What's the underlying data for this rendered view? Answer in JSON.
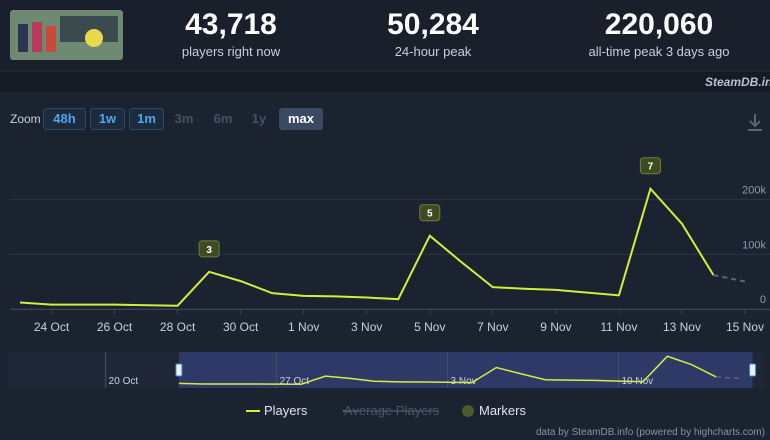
{
  "header": {
    "stats": [
      {
        "value": "43,718",
        "label": "players right now"
      },
      {
        "value": "50,284",
        "label": "24-hour peak"
      },
      {
        "value": "220,060",
        "label": "all-time peak 3 days ago"
      }
    ],
    "source": "SteamDB.info"
  },
  "zoom": {
    "label": "Zoom",
    "buttons": [
      {
        "label": "48h",
        "state": "enabled"
      },
      {
        "label": "1w",
        "state": "enabled"
      },
      {
        "label": "1m",
        "state": "enabled"
      },
      {
        "label": "3m",
        "state": "disabled"
      },
      {
        "label": "6m",
        "state": "disabled"
      },
      {
        "label": "1y",
        "state": "disabled"
      },
      {
        "label": "max",
        "state": "selected"
      }
    ]
  },
  "chart_data": {
    "type": "line",
    "x": [
      "10-23",
      "10-24",
      "10-26",
      "10-28",
      "10-29",
      "10-30",
      "10-31",
      "11-01",
      "11-02",
      "11-03",
      "11-04",
      "11-05",
      "11-06",
      "11-07",
      "11-08",
      "11-09",
      "11-10",
      "11-11",
      "11-12",
      "11-13",
      "11-14",
      "11-15"
    ],
    "series": [
      {
        "name": "Players",
        "color": "#d4ef3a",
        "values": [
          12000,
          8000,
          8000,
          6000,
          68000,
          51000,
          29000,
          24000,
          23000,
          21000,
          18000,
          134000,
          86000,
          40000,
          37000,
          35000,
          30000,
          25000,
          220060,
          156000,
          62000,
          50284
        ]
      }
    ],
    "dashed_last_segment": true,
    "xlim": [
      "10-23",
      "11-15"
    ],
    "xticks": [
      {
        "value": "10-24",
        "label": "24 Oct"
      },
      {
        "value": "10-26",
        "label": "26 Oct"
      },
      {
        "value": "10-28",
        "label": "28 Oct"
      },
      {
        "value": "10-30",
        "label": "30 Oct"
      },
      {
        "value": "11-01",
        "label": "1 Nov"
      },
      {
        "value": "11-03",
        "label": "3 Nov"
      },
      {
        "value": "11-05",
        "label": "5 Nov"
      },
      {
        "value": "11-07",
        "label": "7 Nov"
      },
      {
        "value": "11-09",
        "label": "9 Nov"
      },
      {
        "value": "11-11",
        "label": "11 Nov"
      },
      {
        "value": "11-13",
        "label": "13 Nov"
      },
      {
        "value": "11-15",
        "label": "15 Nov"
      }
    ],
    "ylim": [
      0,
      300000
    ],
    "yticks": [
      0,
      {
        "value": 100000,
        "label": "100k"
      },
      {
        "value": 200000,
        "label": "200k"
      }
    ],
    "grid": true,
    "markers": {
      "x": [
        "10-29",
        "11-05",
        "11-12"
      ],
      "labels": [
        3,
        5,
        7
      ]
    },
    "navigator": {
      "xlim": [
        "10-16",
        "11-16"
      ],
      "ylim": [
        0,
        230000
      ],
      "xticks": [
        {
          "value": "10-20",
          "label": "20 Oct"
        },
        {
          "value": "10-27",
          "label": "27 Oct"
        },
        {
          "value": "11-03",
          "label": "3 Nov"
        },
        {
          "value": "11-10",
          "label": "10 Nov"
        }
      ]
    },
    "extra_legend": [
      {
        "name": "Average Players",
        "color": "#5b6b80",
        "disabled": true
      },
      {
        "name": "Markers",
        "color": "#4b5c2a"
      }
    ],
    "credit": "data by SteamDB.info (powered by highcharts.com)"
  }
}
